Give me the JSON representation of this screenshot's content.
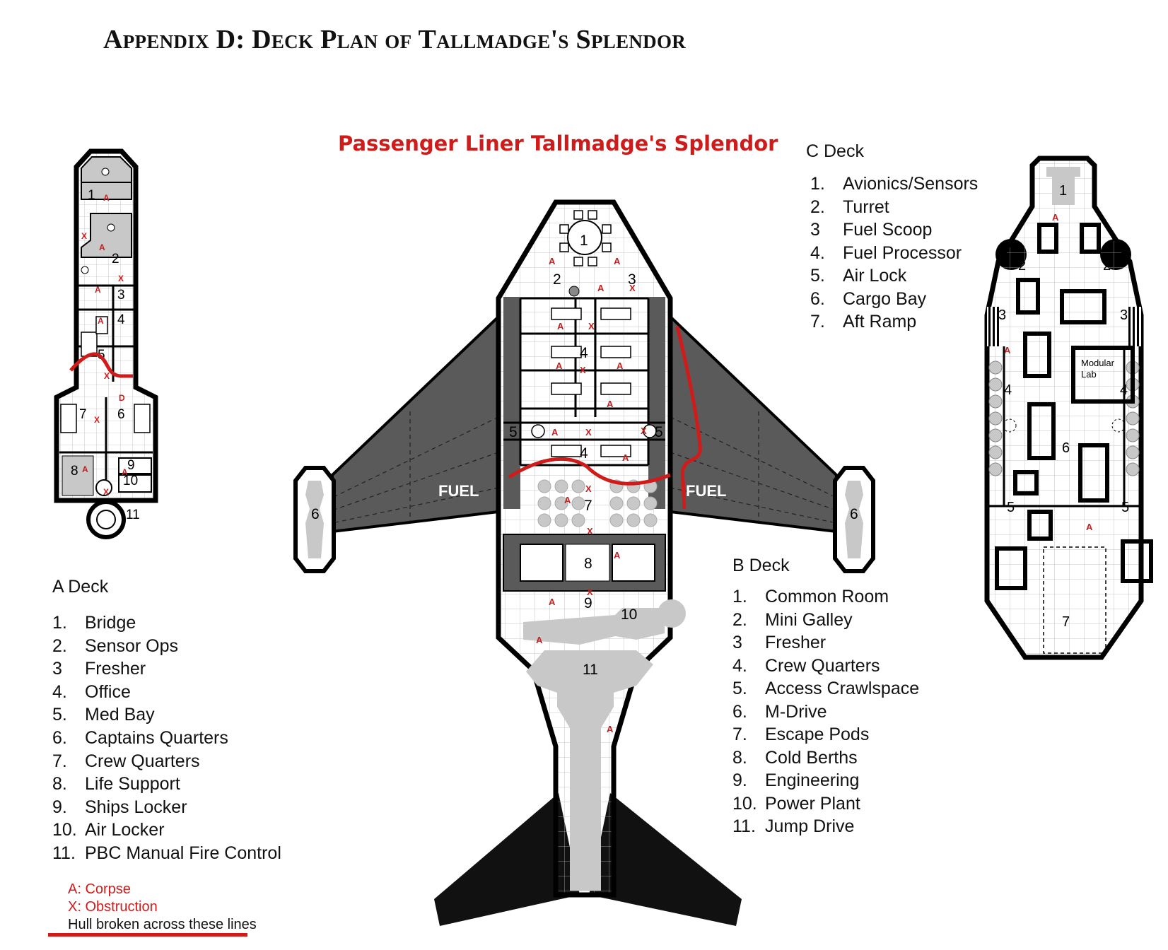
{
  "page_title": "Appendix D: Deck Plan of Tallmadge's Splendor",
  "map_title": "Passenger Liner Tallmadge's Splendor",
  "a_deck": {
    "heading": "A Deck",
    "items": [
      {
        "num": "1.",
        "label": "Bridge"
      },
      {
        "num": "2.",
        "label": "Sensor Ops"
      },
      {
        "num": "3",
        "label": "Fresher"
      },
      {
        "num": "4.",
        "label": "Office"
      },
      {
        "num": "5.",
        "label": "Med Bay"
      },
      {
        "num": "6.",
        "label": "Captains Quarters"
      },
      {
        "num": "7.",
        "label": "Crew Quarters"
      },
      {
        "num": "8.",
        "label": "Life Support"
      },
      {
        "num": "9.",
        "label": "Ships Locker"
      },
      {
        "num": "10.",
        "label": "Air Locker"
      },
      {
        "num": "11.",
        "label": "PBC Manual Fire Control"
      }
    ]
  },
  "b_deck": {
    "heading": "B Deck",
    "items": [
      {
        "num": "1.",
        "label": "Common Room"
      },
      {
        "num": "2.",
        "label": "Mini Galley"
      },
      {
        "num": "3",
        "label": "Fresher"
      },
      {
        "num": "4.",
        "label": "Crew Quarters"
      },
      {
        "num": "5.",
        "label": "Access Crawlspace"
      },
      {
        "num": "6.",
        "label": "M-Drive"
      },
      {
        "num": "7.",
        "label": "Escape Pods"
      },
      {
        "num": "8.",
        "label": "Cold Berths"
      },
      {
        "num": "9.",
        "label": "Engineering"
      },
      {
        "num": "10.",
        "label": "Power Plant"
      },
      {
        "num": "11.",
        "label": "Jump Drive"
      }
    ]
  },
  "c_deck": {
    "heading": "C Deck",
    "items": [
      {
        "num": "1.",
        "label": "Avionics/Sensors"
      },
      {
        "num": "2.",
        "label": "Turret"
      },
      {
        "num": "3",
        "label": "Fuel Scoop"
      },
      {
        "num": "4.",
        "label": "Fuel Processor"
      },
      {
        "num": "5.",
        "label": "Air Lock"
      },
      {
        "num": "6.",
        "label": "Cargo Bay"
      },
      {
        "num": "7.",
        "label": "Aft Ramp"
      }
    ]
  },
  "key": {
    "corpse": "A: Corpse",
    "obstruction": "X: Obstruction",
    "hull_break": "Hull broken across these lines"
  },
  "map_labels": {
    "fuel": "FUEL",
    "modular_lab_line1": "Modular",
    "modular_lab_line2": "Lab",
    "corpse_mark": "A",
    "obstruction_mark": "X",
    "door_mark": "D",
    "room_numbers": [
      "1",
      "2",
      "3",
      "4",
      "5",
      "6",
      "7",
      "8",
      "9",
      "10",
      "11"
    ]
  },
  "colors": {
    "hull_break_red": "#d01b1b",
    "wing_gray": "#5a5a5a",
    "machinery_gray": "#c8c8c8",
    "outline": "#000000"
  }
}
